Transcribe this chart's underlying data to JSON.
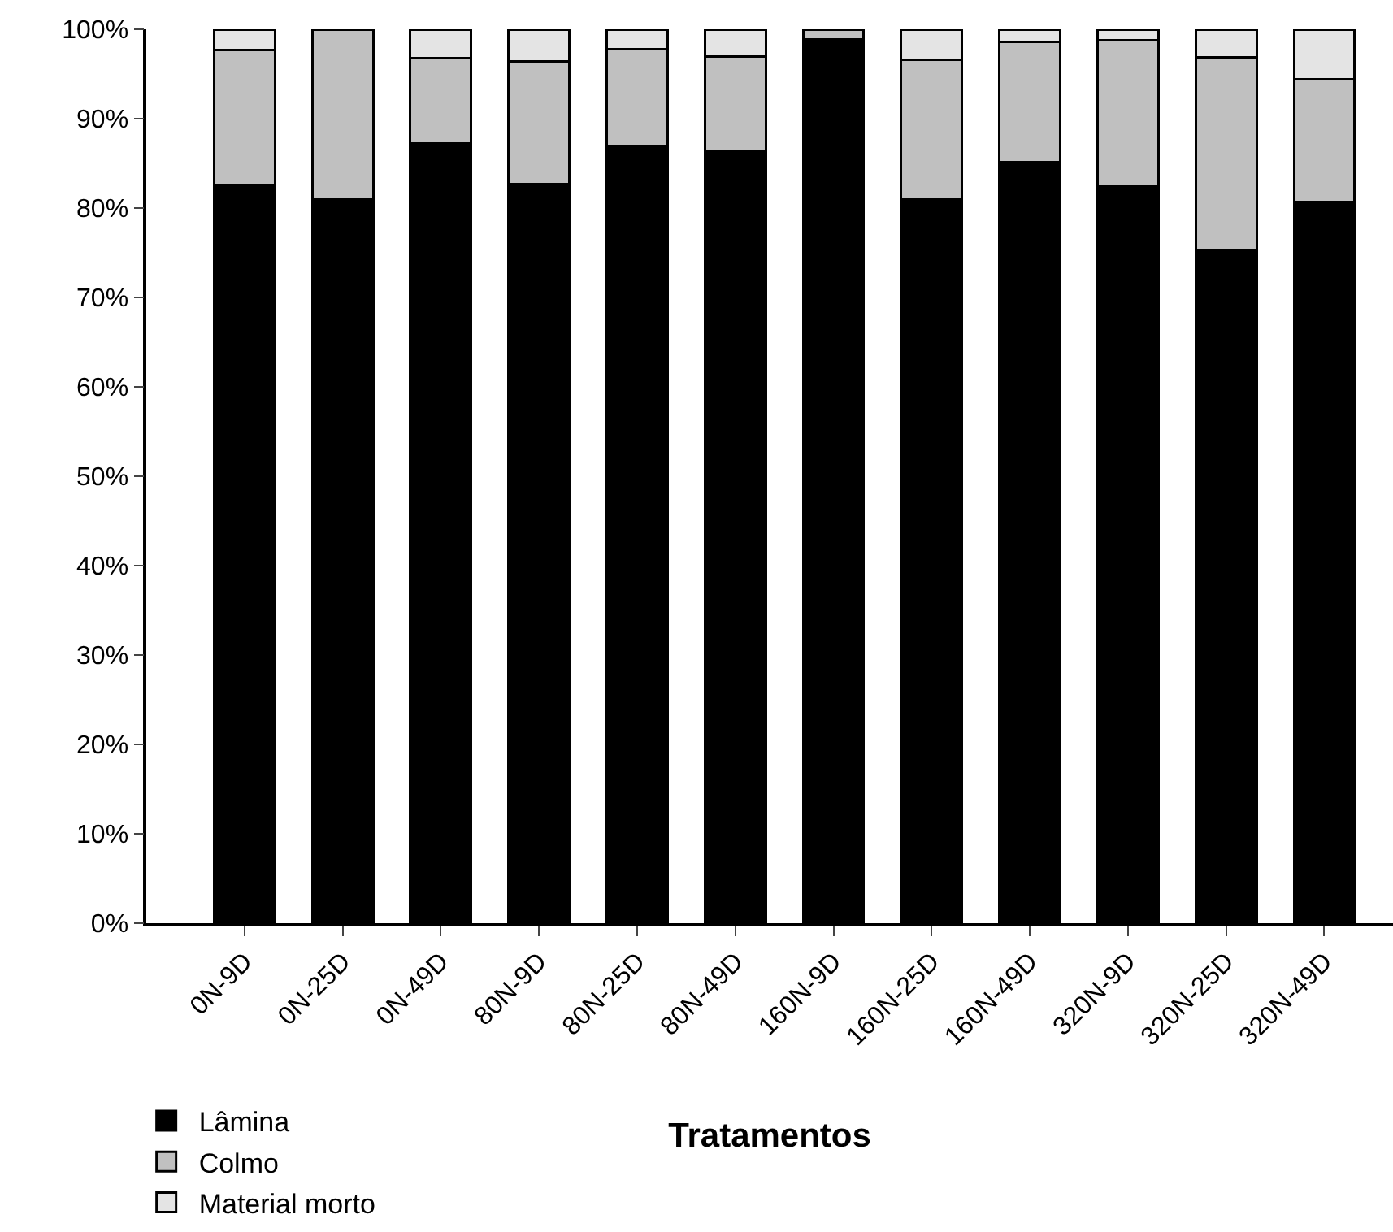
{
  "chart_data": {
    "type": "bar",
    "stacked": true,
    "xlabel": "Tratamentos",
    "categories": [
      "0N-9D",
      "0N-25D",
      "0N-49D",
      "80N-9D",
      "80N-25D",
      "80N-49D",
      "160N-9D",
      "160N-25D",
      "160N-49D",
      "320N-9D",
      "320N-25D",
      "320N-49D"
    ],
    "series": [
      {
        "name": "Lâmina",
        "color": "#000000",
        "values": [
          82.5,
          81,
          87.2,
          82.7,
          86.9,
          86.3,
          98.9,
          81,
          85.1,
          82.4,
          75.3,
          80.7
        ]
      },
      {
        "name": "Colmo",
        "color": "#c0c0c0",
        "values": [
          15.2,
          19,
          9.6,
          13.7,
          10.9,
          10.7,
          1.1,
          15.6,
          13.5,
          16.4,
          21.6,
          13.7
        ]
      },
      {
        "name": "Material morto",
        "color": "#e4e4e4",
        "values": [
          2.3,
          null,
          3.2,
          3.6,
          2.2,
          3,
          null,
          3.4,
          1.4,
          1.2,
          3.1,
          5.6
        ]
      }
    ],
    "ylim": [
      0,
      100
    ],
    "yticks": [
      {
        "value": 0,
        "label": "0%"
      },
      {
        "value": 10,
        "label": "10%"
      },
      {
        "value": 20,
        "label": "20%"
      },
      {
        "value": 30,
        "label": "30%"
      },
      {
        "value": 40,
        "label": "40%"
      },
      {
        "value": 50,
        "label": "50%"
      },
      {
        "value": 60,
        "label": "60%"
      },
      {
        "value": 70,
        "label": "70%"
      },
      {
        "value": 80,
        "label": "80%"
      },
      {
        "value": 90,
        "label": "90%"
      },
      {
        "value": 100,
        "label": "100%"
      }
    ],
    "grid": false,
    "legend": "bottom left"
  }
}
